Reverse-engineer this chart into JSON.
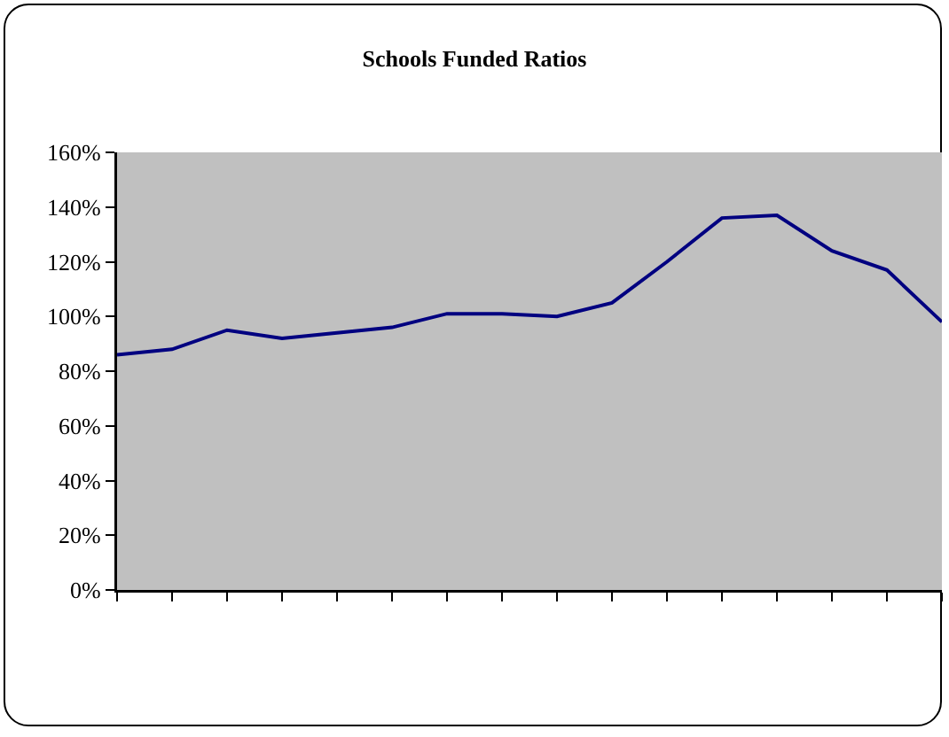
{
  "chart_data": {
    "type": "line",
    "title": "Schools Funded Ratios",
    "categories": [
      null,
      null,
      null,
      null,
      null,
      null,
      null,
      null,
      null,
      null,
      null,
      null,
      null,
      null,
      null,
      null
    ],
    "values": [
      86,
      88,
      95,
      92,
      94,
      96,
      101,
      101,
      100,
      105,
      120,
      136,
      137,
      124,
      117,
      98
    ],
    "color": "#000080",
    "ylim": [
      0,
      160
    ],
    "yticks": [
      {
        "value": 0,
        "label": "0%"
      },
      {
        "value": 20,
        "label": "20%"
      },
      {
        "value": 40,
        "label": "40%"
      },
      {
        "value": 60,
        "label": "60%"
      },
      {
        "value": 80,
        "label": "80%"
      },
      {
        "value": 100,
        "label": "100%"
      },
      {
        "value": 120,
        "label": "120%"
      },
      {
        "value": 140,
        "label": "140%"
      },
      {
        "value": 160,
        "label": "160%"
      }
    ]
  }
}
